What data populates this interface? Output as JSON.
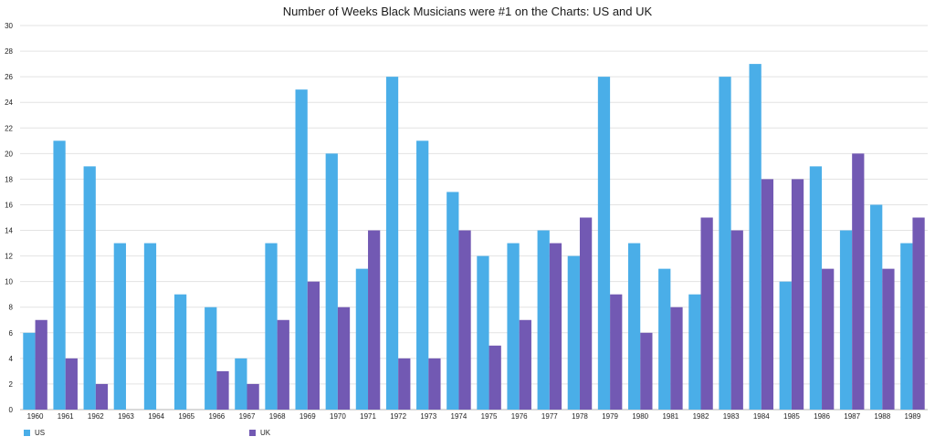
{
  "chart_data": {
    "type": "bar",
    "title": "Number of Weeks Black Musicians were #1 on the Charts: US and UK",
    "categories": [
      "1960",
      "1961",
      "1962",
      "1963",
      "1964",
      "1965",
      "1966",
      "1967",
      "1968",
      "1969",
      "1970",
      "1971",
      "1972",
      "1973",
      "1974",
      "1975",
      "1976",
      "1977",
      "1978",
      "1979",
      "1980",
      "1981",
      "1982",
      "1983",
      "1984",
      "1985",
      "1986",
      "1987",
      "1988",
      "1989"
    ],
    "series": [
      {
        "name": "US",
        "color": "#4aaee8",
        "values": [
          6,
          21,
          19,
          13,
          13,
          9,
          8,
          4,
          13,
          25,
          20,
          11,
          26,
          21,
          17,
          12,
          13,
          14,
          12,
          26,
          13,
          11,
          9,
          26,
          27,
          10,
          19,
          14,
          16,
          13
        ]
      },
      {
        "name": "UK",
        "color": "#7259b3",
        "values": [
          7,
          4,
          2,
          0,
          0,
          0,
          3,
          2,
          7,
          10,
          8,
          14,
          4,
          4,
          14,
          5,
          7,
          13,
          15,
          9,
          6,
          8,
          15,
          14,
          18,
          18,
          11,
          20,
          11,
          15
        ]
      }
    ],
    "ylim": [
      0,
      30
    ],
    "yticks": [
      0,
      2,
      4,
      6,
      8,
      10,
      12,
      14,
      16,
      18,
      20,
      22,
      24,
      26,
      28,
      30
    ],
    "grid": true,
    "legend_position": "bottom-left"
  }
}
